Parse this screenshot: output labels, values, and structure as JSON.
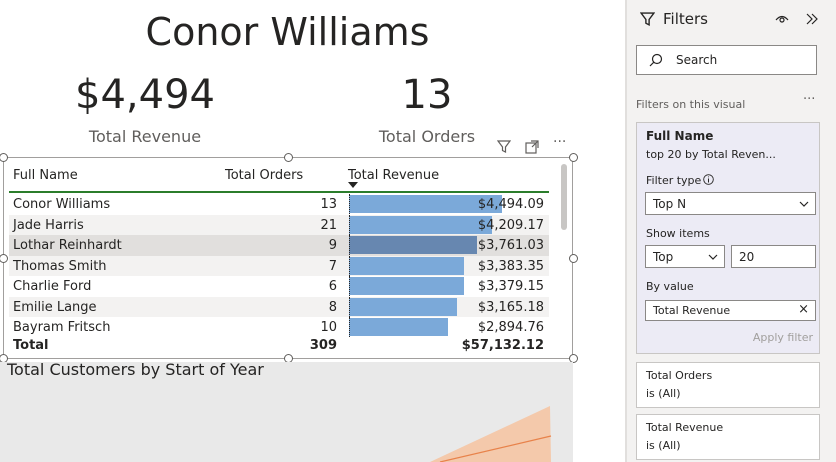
{
  "report": {
    "title": "Conor Williams",
    "kpis": [
      {
        "value": "$4,494",
        "label": "Total Revenue"
      },
      {
        "value": "13",
        "label": "Total Orders"
      }
    ]
  },
  "table": {
    "columns": [
      "Full Name",
      "Total Orders",
      "Total Revenue"
    ],
    "rows": [
      {
        "name": "Conor Williams",
        "orders": "13",
        "revenue": "$4,494.09",
        "value": 4494.09
      },
      {
        "name": "Jade Harris",
        "orders": "21",
        "revenue": "$4,209.17",
        "value": 4209.17
      },
      {
        "name": "Lothar Reinhardt",
        "orders": "9",
        "revenue": "$3,761.03",
        "value": 3761.03
      },
      {
        "name": "Thomas Smith",
        "orders": "7",
        "revenue": "$3,383.35",
        "value": 3383.35
      },
      {
        "name": "Charlie Ford",
        "orders": "6",
        "revenue": "$3,379.15",
        "value": 3379.15
      },
      {
        "name": "Emilie Lange",
        "orders": "8",
        "revenue": "$3,165.18",
        "value": 3165.18
      },
      {
        "name": "Bayram Fritsch",
        "orders": "10",
        "revenue": "$2,894.76",
        "value": 2894.76
      }
    ],
    "total": {
      "label": "Total",
      "orders": "309",
      "revenue": "$57,132.12"
    },
    "bar_color": "#7ba9d9",
    "bar_selected_color": "#6787b0",
    "selected_row": 2
  },
  "chart": {
    "title": "Total Customers by Start of Year"
  },
  "filters": {
    "pane_title": "Filters",
    "search_placeholder": "Search",
    "section_label": "Filters on this visual",
    "active_card": {
      "field": "Full Name",
      "summary": "top 20 by Total Reven...",
      "filter_type_label": "Filter type",
      "filter_type_value": "Top N",
      "show_items_label": "Show items",
      "show_items_direction": "Top",
      "show_items_count": "20",
      "by_value_label": "By value",
      "by_value_field": "Total Revenue",
      "apply_label": "Apply filter"
    },
    "cards": [
      {
        "field": "Total Orders",
        "state": "is (All)"
      },
      {
        "field": "Total Revenue",
        "state": "is (All)"
      }
    ]
  }
}
